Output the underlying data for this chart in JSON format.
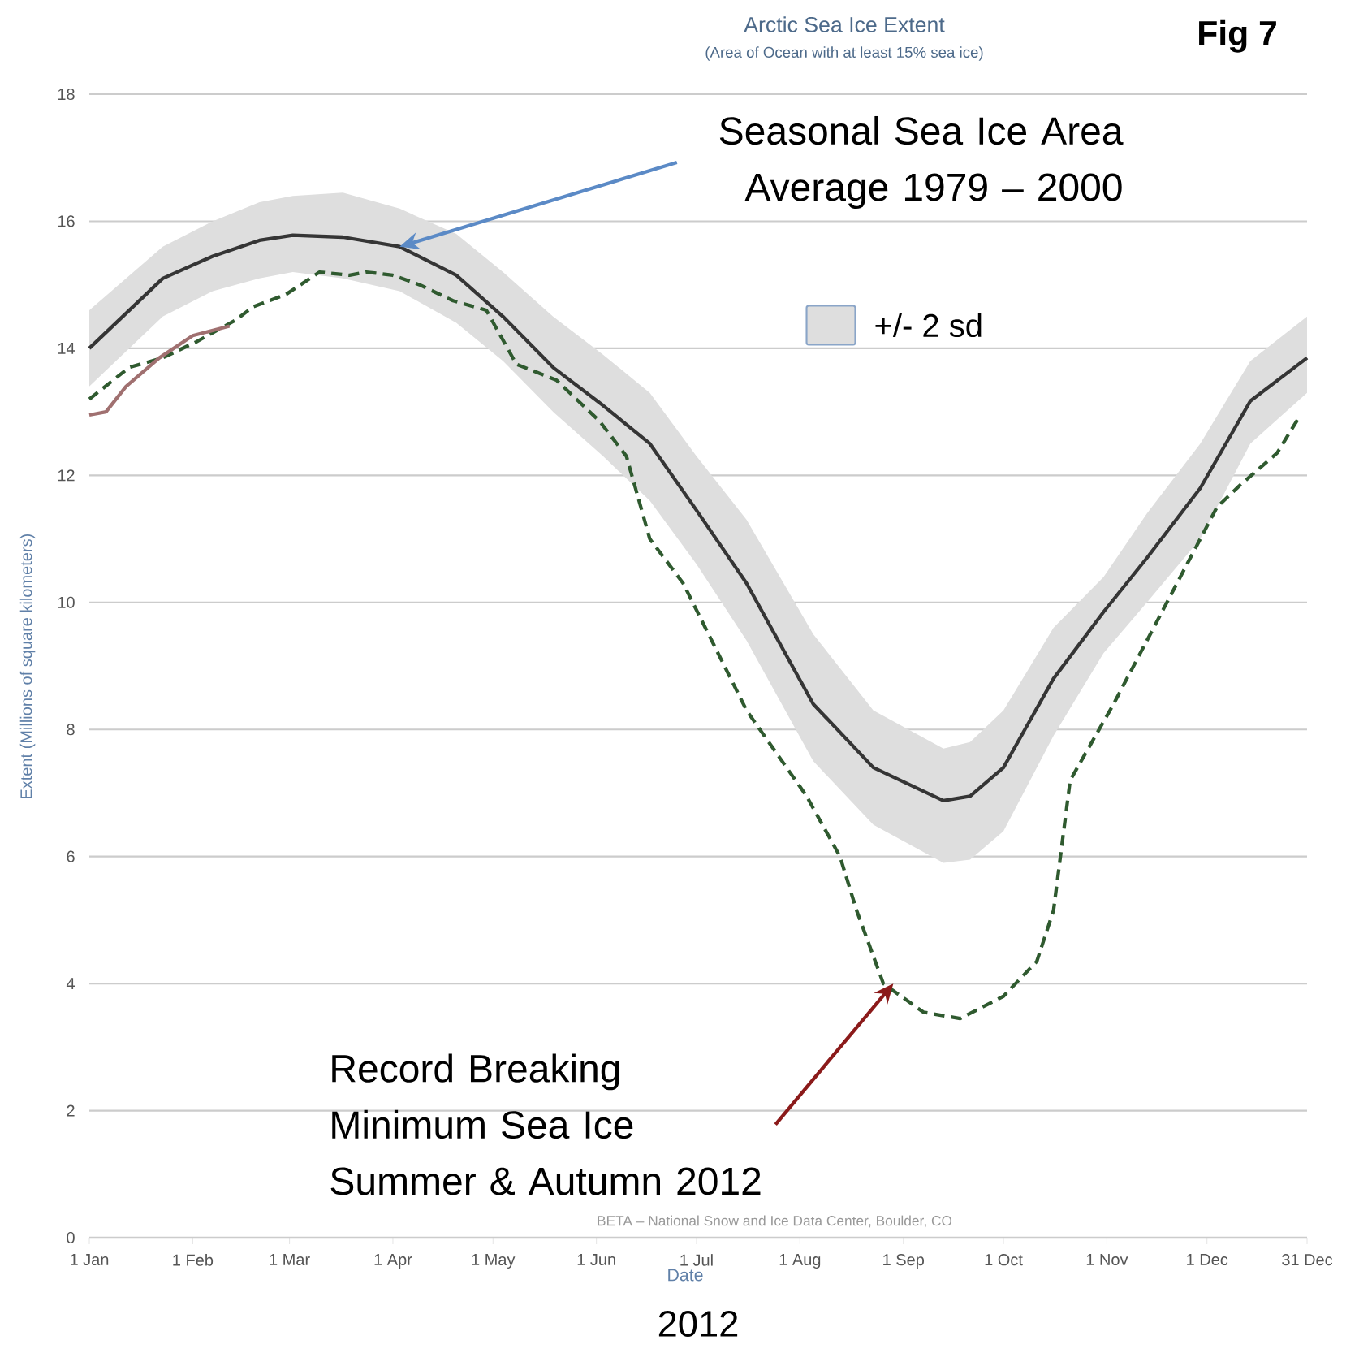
{
  "chart_data": {
    "type": "line",
    "title": "Arctic Sea Ice Extent",
    "subtitle": "(Area of Ocean with at least 15% sea ice)",
    "xlabel": "Date",
    "ylabel": "Extent (Millions of square kilometers)",
    "xlim": [
      "2012-01-01",
      "2012-12-31"
    ],
    "xticks": [
      {
        "value": "2012-01-01",
        "label": "1 Jan"
      },
      {
        "value": "2012-02-01",
        "label": "1 Feb"
      },
      {
        "value": "2012-03-01",
        "label": "1 Mar"
      },
      {
        "value": "2012-04-01",
        "label": "1 Apr"
      },
      {
        "value": "2012-05-01",
        "label": "1 May"
      },
      {
        "value": "2012-06-01",
        "label": "1 Jun"
      },
      {
        "value": "2012-07-01",
        "label": "1 Jul"
      },
      {
        "value": "2012-08-01",
        "label": "1 Aug"
      },
      {
        "value": "2012-09-01",
        "label": "1 Sep"
      },
      {
        "value": "2012-10-01",
        "label": "1 Oct"
      },
      {
        "value": "2012-11-01",
        "label": "1 Nov"
      },
      {
        "value": "2012-12-01",
        "label": "1 Dec"
      },
      {
        "value": "2012-12-31",
        "label": "31 Dec"
      }
    ],
    "ylim": [
      0,
      18
    ],
    "yticks": [
      0,
      2,
      4,
      6,
      8,
      10,
      12,
      14,
      16,
      18
    ],
    "grid": "y",
    "legend": "top",
    "series": [
      {
        "name": "+/- 2 sd",
        "color": "#353535",
        "x": [
          "2012-01-01",
          "2012-01-23",
          "2012-02-07",
          "2012-02-21",
          "2012-03-02",
          "2012-03-17",
          "2012-04-03",
          "2012-04-20",
          "2012-05-04",
          "2012-05-19",
          "2012-06-03",
          "2012-06-17",
          "2012-07-01",
          "2012-07-16",
          "2012-08-05",
          "2012-08-23",
          "2012-09-13",
          "2012-09-21",
          "2012-10-01",
          "2012-10-16",
          "2012-10-31",
          "2012-11-13",
          "2012-11-29",
          "2012-12-14",
          "2012-12-31"
        ],
        "values": [
          14.0,
          15.1,
          15.45,
          15.7,
          15.78,
          15.75,
          15.6,
          15.15,
          14.5,
          13.7,
          13.1,
          12.5,
          11.45,
          10.3,
          8.4,
          7.4,
          6.88,
          6.95,
          7.4,
          8.8,
          9.85,
          10.7,
          11.8,
          13.17,
          13.85
        ],
        "lower": [
          13.4,
          14.5,
          14.9,
          15.1,
          15.2,
          15.1,
          14.9,
          14.4,
          13.8,
          13.0,
          12.3,
          11.6,
          10.6,
          9.4,
          7.5,
          6.5,
          5.9,
          5.95,
          6.4,
          7.9,
          9.2,
          10.0,
          11.0,
          12.5,
          13.3
        ],
        "upper": [
          14.6,
          15.6,
          16.0,
          16.3,
          16.4,
          16.45,
          16.2,
          15.8,
          15.2,
          14.5,
          13.9,
          13.3,
          12.3,
          11.3,
          9.5,
          8.3,
          7.7,
          7.8,
          8.3,
          9.6,
          10.4,
          11.4,
          12.5,
          13.8,
          14.5
        ]
      },
      {
        "color": "#2f5a2f",
        "line_style": "dashed",
        "x": [
          "2012-01-01",
          "2012-01-13",
          "2012-01-23",
          "2012-02-02",
          "2012-02-14",
          "2012-02-19",
          "2012-02-29",
          "2012-03-10",
          "2012-03-19",
          "2012-03-24",
          "2012-04-01",
          "2012-04-09",
          "2012-04-19",
          "2012-04-29",
          "2012-05-08",
          "2012-05-20",
          "2012-06-02",
          "2012-06-10",
          "2012-06-17",
          "2012-06-27",
          "2012-07-16",
          "2012-08-03",
          "2012-08-13",
          "2012-08-18",
          "2012-08-26",
          "2012-09-07",
          "2012-09-18",
          "2012-10-01",
          "2012-10-11",
          "2012-10-16",
          "2012-10-21",
          "2012-11-03",
          "2012-11-18",
          "2012-12-04",
          "2012-12-11",
          "2012-12-22",
          "2012-12-29"
        ],
        "values": [
          13.2,
          13.7,
          13.85,
          14.1,
          14.45,
          14.65,
          14.85,
          15.2,
          15.15,
          15.2,
          15.15,
          15.0,
          14.75,
          14.6,
          13.75,
          13.5,
          12.85,
          12.3,
          11.0,
          10.3,
          8.3,
          6.95,
          6.0,
          5.15,
          4.0,
          3.55,
          3.45,
          3.8,
          4.35,
          5.15,
          7.2,
          8.4,
          9.9,
          11.5,
          11.85,
          12.35,
          12.95
        ]
      },
      {
        "color": "#a07070",
        "x": [
          "2012-01-01",
          "2012-01-06",
          "2012-01-12",
          "2012-01-22",
          "2012-02-01",
          "2012-02-12"
        ],
        "values": [
          12.95,
          13.0,
          13.4,
          13.85,
          14.2,
          14.35
        ]
      }
    ],
    "annotations": [
      {
        "text": "Seasonal Sea Ice Area Average 1979 – 2000",
        "x": "2012-04-03",
        "y": 15.6
      },
      {
        "text": "Record Breaking Minimum Sea Ice Summer & Autumn 2012",
        "x": "2012-08-29",
        "y": 4.0
      },
      "BETA – National Snow and Ice Data Center, Boulder, CO",
      "Fig 7",
      "2012"
    ]
  }
}
